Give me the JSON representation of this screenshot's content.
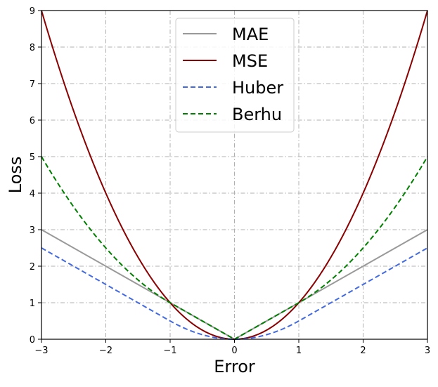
{
  "chart_data": {
    "type": "line",
    "xlabel": "Error",
    "ylabel": "Loss",
    "xlim": [
      -3,
      3
    ],
    "ylim": [
      0,
      9
    ],
    "xticks": [
      -3,
      -2,
      -1,
      0,
      1,
      2,
      3
    ],
    "yticks": [
      0,
      1,
      2,
      3,
      4,
      5,
      6,
      7,
      8,
      9
    ],
    "xtick_labels": [
      "−3",
      "−2",
      "−1",
      "0",
      "1",
      "2",
      "3"
    ],
    "ytick_labels": [
      "0",
      "1",
      "2",
      "3",
      "4",
      "5",
      "6",
      "7",
      "8",
      "9"
    ],
    "grid": true,
    "legend_position": "top-center",
    "series": [
      {
        "name": "MAE",
        "color": "#999999",
        "style": "solid",
        "x": [
          -3,
          0,
          3
        ],
        "y": [
          3,
          0,
          3
        ]
      },
      {
        "name": "MSE",
        "color": "#8b0000",
        "style": "solid",
        "x": [
          -3,
          -2.5,
          -2,
          -1.5,
          -1,
          -0.5,
          0,
          0.5,
          1,
          1.5,
          2,
          2.5,
          3
        ],
        "y": [
          9,
          6.25,
          4,
          2.25,
          1,
          0.25,
          0,
          0.25,
          1,
          2.25,
          4,
          6.25,
          9
        ]
      },
      {
        "name": "Huber",
        "color": "#4169e1",
        "style": "dashed",
        "x": [
          -3,
          -2,
          -1,
          -0.75,
          -0.5,
          -0.25,
          0,
          0.25,
          0.5,
          0.75,
          1,
          2,
          3
        ],
        "y": [
          2.5,
          1.5,
          0.5,
          0.28,
          0.125,
          0.03,
          0,
          0.03,
          0.125,
          0.28,
          0.5,
          1.5,
          2.5
        ]
      },
      {
        "name": "Berhu",
        "color": "#008000",
        "style": "dashed",
        "x": [
          -3,
          -2.5,
          -2,
          -1.5,
          -1,
          -0.5,
          0,
          0.5,
          1,
          1.5,
          2,
          2.5,
          3
        ],
        "y": [
          5,
          3.625,
          2.5,
          1.625,
          1,
          0.5,
          0,
          0.5,
          1,
          1.625,
          2.5,
          3.625,
          5
        ]
      }
    ]
  }
}
